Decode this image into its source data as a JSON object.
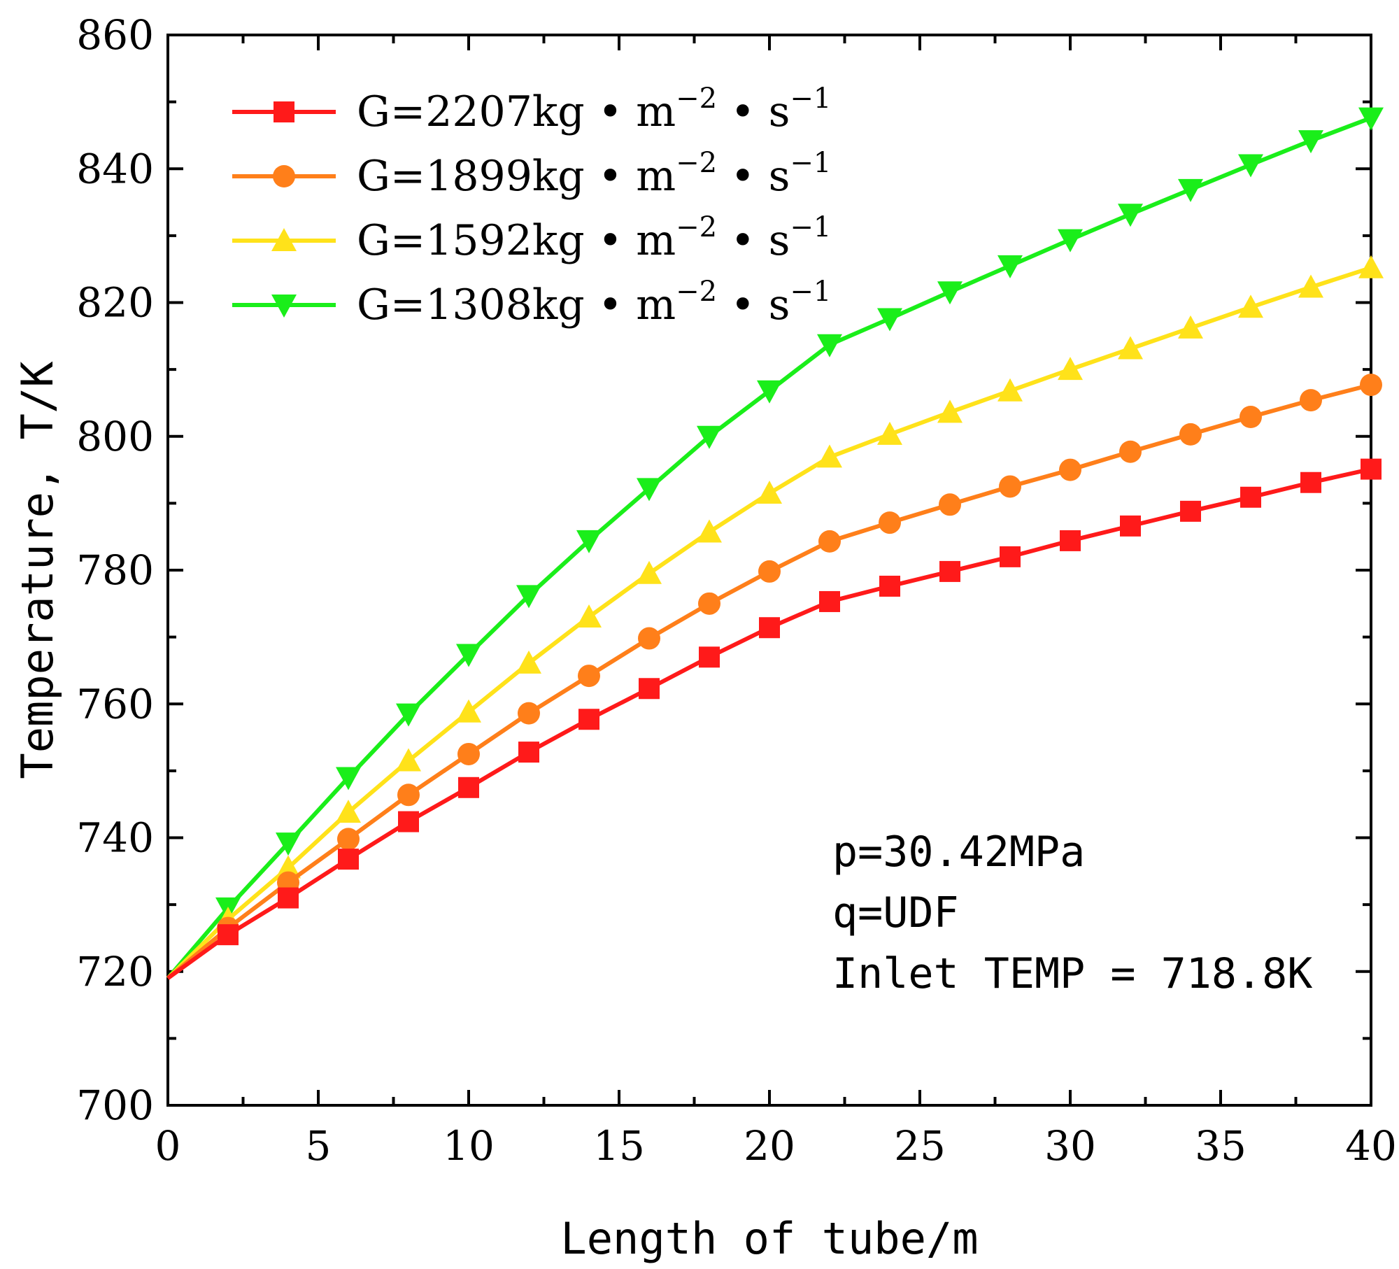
{
  "chart_data": {
    "type": "line",
    "title": "",
    "xlabel": "Length of tube/m",
    "ylabel": "Temperature, T/K",
    "xlim": [
      0,
      40
    ],
    "ylim": [
      700,
      860
    ],
    "xticks": [
      0,
      5,
      10,
      15,
      20,
      25,
      30,
      35,
      40
    ],
    "yticks": [
      700,
      720,
      740,
      760,
      780,
      800,
      820,
      840,
      860
    ],
    "x": [
      0,
      2,
      4,
      6,
      8,
      10,
      12,
      14,
      16,
      18,
      20,
      22,
      24,
      26,
      28,
      30,
      32,
      34,
      36,
      38,
      40
    ],
    "legend_position": "top-left",
    "series": [
      {
        "name": "G=2207kg • m-2 • s-1",
        "label_main": "G=2207kg • m",
        "label_exp1": "−2",
        "label_mid": " • s",
        "label_exp2": "−1",
        "color": "#ff1a1a",
        "marker": "square",
        "values": [
          719.0,
          725.5,
          731.0,
          736.8,
          742.4,
          747.5,
          752.8,
          757.7,
          762.3,
          767.0,
          771.4,
          775.3,
          777.6,
          779.8,
          782.0,
          784.4,
          786.6,
          788.8,
          790.9,
          793.1,
          795.1
        ]
      },
      {
        "name": "G=1899kg • m-2 • s-1",
        "label_main": "G=1899kg • m",
        "label_exp1": "−2",
        "label_mid": " • s",
        "label_exp2": "−1",
        "color": "#ff7f1a",
        "marker": "circle",
        "values": [
          719.0,
          726.5,
          733.3,
          739.8,
          746.4,
          752.5,
          758.6,
          764.2,
          769.8,
          775.0,
          779.8,
          784.3,
          787.1,
          789.8,
          792.5,
          795.0,
          797.7,
          800.3,
          802.9,
          805.4,
          807.7
        ]
      },
      {
        "name": "G=1592kg • m-2 • s-1",
        "label_main": "G=1592kg • m",
        "label_exp1": "−2",
        "label_mid": " • s",
        "label_exp2": "−1",
        "color": "#ffe21a",
        "marker": "triangle-up",
        "values": [
          719.0,
          727.8,
          735.5,
          743.8,
          751.5,
          758.8,
          766.1,
          773.0,
          779.5,
          785.7,
          791.5,
          796.9,
          800.3,
          803.6,
          806.8,
          810.0,
          813.1,
          816.2,
          819.3,
          822.3,
          825.2
        ]
      },
      {
        "name": "G=1308kg • m-2 • s-1",
        "label_main": "G=1308kg • m",
        "label_exp1": "−2",
        "label_mid": " • s",
        "label_exp2": "−1",
        "color": "#1aee1a",
        "marker": "triangle-down",
        "values": [
          719.0,
          729.5,
          739.2,
          749.0,
          758.5,
          767.4,
          776.2,
          784.4,
          792.2,
          800.0,
          806.8,
          813.7,
          817.6,
          821.6,
          825.5,
          829.4,
          833.2,
          836.9,
          840.6,
          844.2,
          847.6
        ]
      }
    ],
    "annotations": [
      "p=30.42MPa",
      "q=UDF",
      "Inlet TEMP = 718.8K"
    ]
  }
}
